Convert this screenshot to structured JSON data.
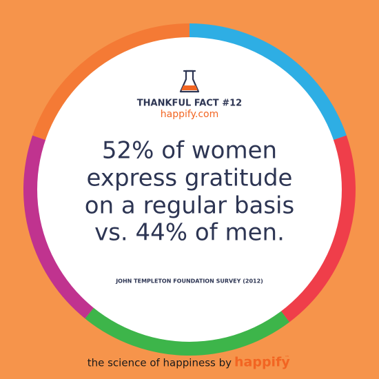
{
  "header": {
    "title": "THANKFUL FACT #12",
    "site": "happify.com"
  },
  "fact": {
    "lines": [
      "52% of women",
      "express gratitude",
      "on a regular basis",
      "vs. 44% of men."
    ]
  },
  "source": "JOHN TEMPLETON FOUNDATION SURVEY (2012)",
  "footer": {
    "tagline": "the science of happiness by",
    "brand": "happify",
    "mark": "™"
  }
}
